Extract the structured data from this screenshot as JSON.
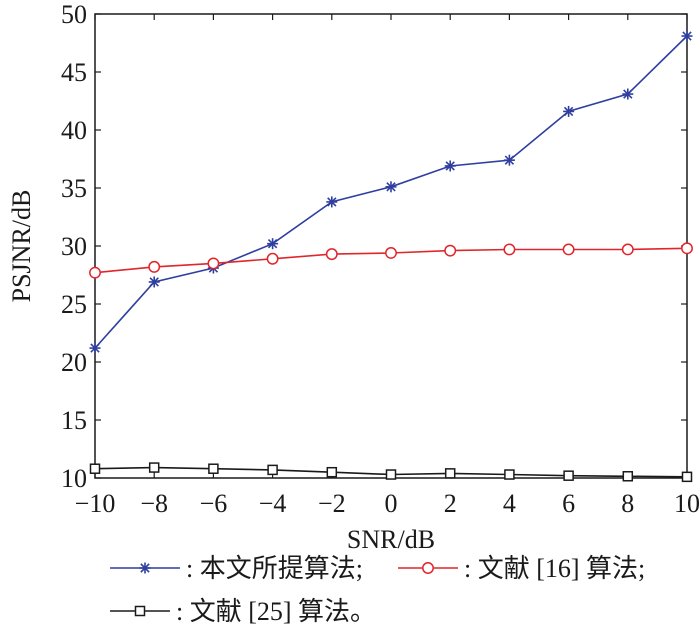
{
  "chart_data": {
    "type": "line",
    "title": "",
    "xlabel": "SNR/dB",
    "ylabel": "PSJNR/dB",
    "x": [
      -10,
      -8,
      -6,
      -4,
      -2,
      0,
      2,
      4,
      6,
      8,
      10
    ],
    "xlim": [
      -10,
      10
    ],
    "ylim": [
      10,
      50
    ],
    "xticks": [
      "−10",
      "−8",
      "−6",
      "−4",
      "−2",
      "0",
      "2",
      "4",
      "6",
      "8",
      "10"
    ],
    "yticks": [
      "10",
      "15",
      "20",
      "25",
      "30",
      "35",
      "40",
      "45",
      "50"
    ],
    "grid": false,
    "legend_position": "bottom",
    "series": [
      {
        "name": ": 本文所提算法;",
        "color": "#2f3fa0",
        "marker": "star",
        "values": [
          21.2,
          26.9,
          28.1,
          30.2,
          33.8,
          35.1,
          36.9,
          37.4,
          41.6,
          43.1,
          48.1
        ]
      },
      {
        "name": ": 文献 [16] 算法;",
        "color": "#e0262a",
        "marker": "circle",
        "values": [
          27.7,
          28.2,
          28.5,
          28.9,
          29.3,
          29.4,
          29.6,
          29.7,
          29.7,
          29.7,
          29.8
        ]
      },
      {
        "name": ": 文献 [25] 算法。",
        "color": "#1a1a1a",
        "marker": "square",
        "values": [
          10.8,
          10.9,
          10.8,
          10.7,
          10.5,
          10.3,
          10.4,
          10.3,
          10.2,
          10.15,
          10.1
        ]
      }
    ]
  }
}
